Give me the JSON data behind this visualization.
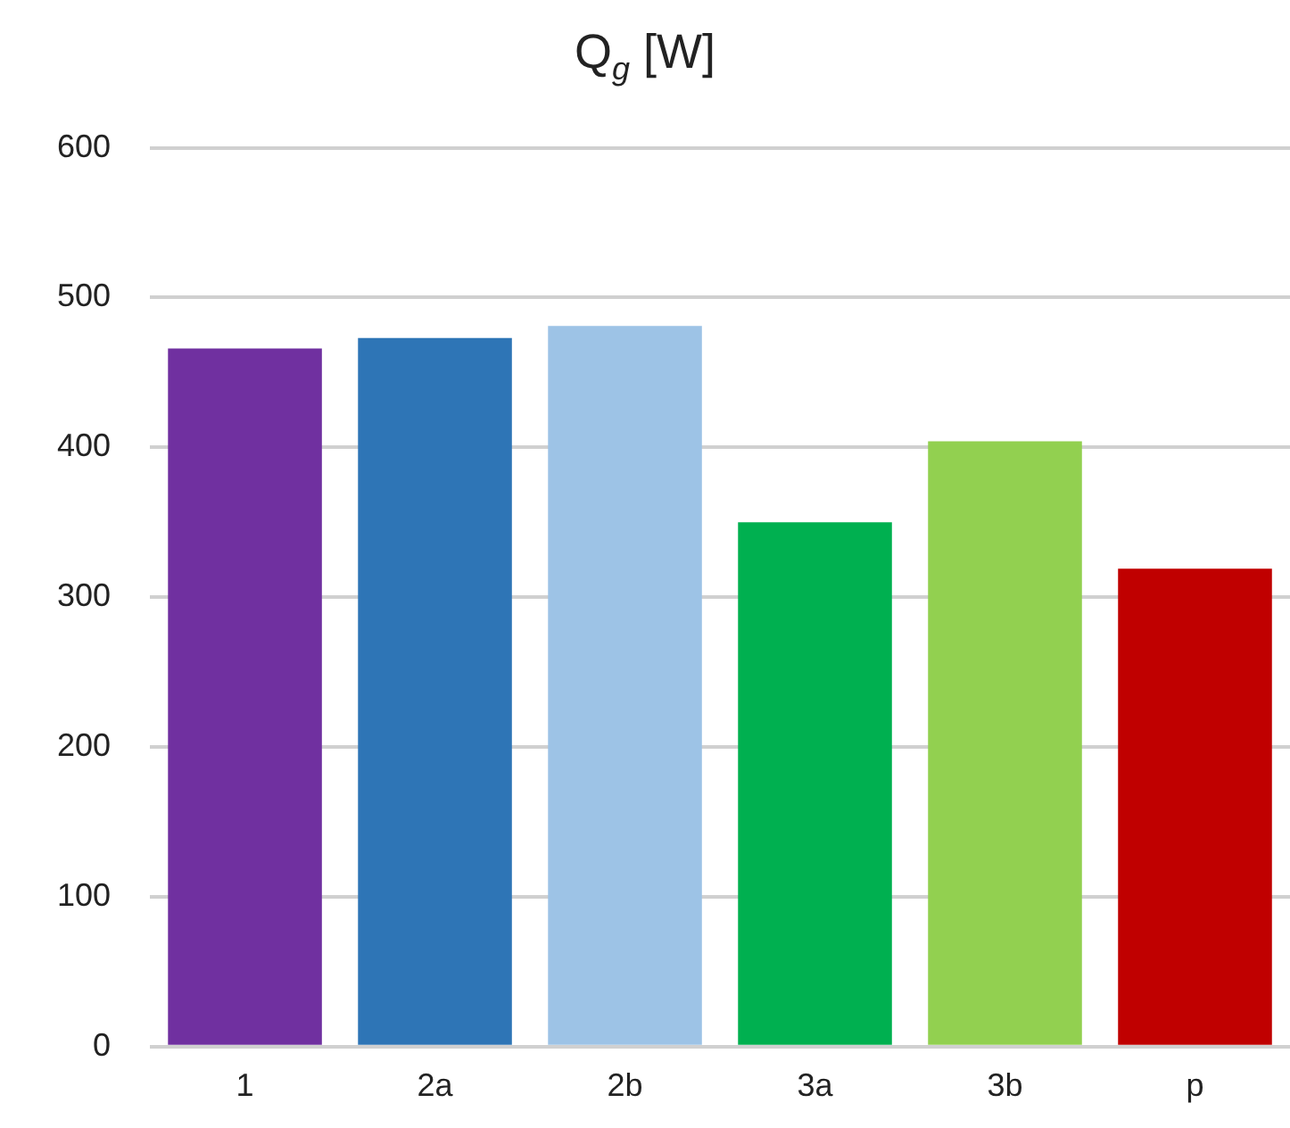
{
  "chart_data": {
    "type": "bar",
    "title": "Q$_{g}$ [W]",
    "categories": [
      "1",
      "2a",
      "2b",
      "3a",
      "3b",
      "p"
    ],
    "values": [
      466,
      473,
      481,
      350,
      404,
      319
    ],
    "colors": [
      "#7030a0",
      "#2e75b6",
      "#9dc3e6",
      "#00b050",
      "#92d050",
      "#c00000"
    ],
    "ylim": [
      0,
      600
    ],
    "yticks": [
      0,
      100,
      200,
      300,
      400,
      500,
      600
    ],
    "grid": "y",
    "legend": false
  }
}
